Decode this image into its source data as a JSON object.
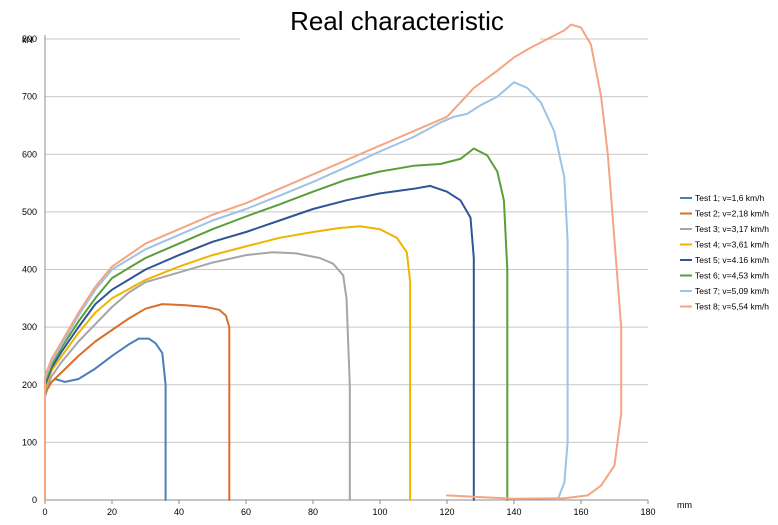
{
  "chart_data": {
    "type": "line",
    "title": "Real characteristic",
    "xunit": "mm",
    "yunit": "kN",
    "xlim": [
      0,
      180
    ],
    "ylim": [
      0,
      800
    ],
    "xticks": [
      0,
      20,
      40,
      60,
      80,
      100,
      120,
      140,
      160,
      180
    ],
    "yticks": [
      0,
      100,
      200,
      300,
      400,
      500,
      600,
      700,
      800
    ],
    "grid": true,
    "legend_position": "right",
    "series": [
      {
        "name": "Test 1; v=1,6 km/h",
        "color": "#4a7ebb",
        "points": [
          [
            0,
            0
          ],
          [
            0,
            180
          ],
          [
            1,
            200
          ],
          [
            3,
            210
          ],
          [
            6,
            205
          ],
          [
            10,
            210
          ],
          [
            15,
            228
          ],
          [
            20,
            250
          ],
          [
            25,
            270
          ],
          [
            28,
            280
          ],
          [
            31,
            280
          ],
          [
            33,
            272
          ],
          [
            35,
            255
          ],
          [
            36,
            200
          ],
          [
            36,
            100
          ],
          [
            36,
            0
          ]
        ]
      },
      {
        "name": "Test 2; v=2,18 km/h",
        "color": "#d96f2a",
        "points": [
          [
            0,
            0
          ],
          [
            0,
            185
          ],
          [
            2,
            205
          ],
          [
            5,
            222
          ],
          [
            10,
            250
          ],
          [
            15,
            275
          ],
          [
            20,
            295
          ],
          [
            25,
            315
          ],
          [
            30,
            332
          ],
          [
            35,
            340
          ],
          [
            42,
            338
          ],
          [
            48,
            335
          ],
          [
            52,
            330
          ],
          [
            54,
            320
          ],
          [
            55,
            300
          ],
          [
            55,
            200
          ],
          [
            55,
            100
          ],
          [
            55,
            0
          ]
        ]
      },
      {
        "name": "Test 3; v=3,17 km/h",
        "color": "#a5a5a5",
        "points": [
          [
            0,
            0
          ],
          [
            0,
            190
          ],
          [
            2,
            215
          ],
          [
            5,
            240
          ],
          [
            10,
            275
          ],
          [
            15,
            305
          ],
          [
            20,
            335
          ],
          [
            25,
            360
          ],
          [
            30,
            378
          ],
          [
            40,
            395
          ],
          [
            50,
            412
          ],
          [
            60,
            425
          ],
          [
            68,
            430
          ],
          [
            75,
            428
          ],
          [
            82,
            420
          ],
          [
            86,
            410
          ],
          [
            89,
            390
          ],
          [
            90,
            350
          ],
          [
            91,
            200
          ],
          [
            91,
            100
          ],
          [
            91,
            0
          ]
        ]
      },
      {
        "name": "Test 4; v=3,61 km/h",
        "color": "#f0b400",
        "points": [
          [
            0,
            0
          ],
          [
            0,
            195
          ],
          [
            2,
            225
          ],
          [
            5,
            250
          ],
          [
            10,
            290
          ],
          [
            15,
            325
          ],
          [
            20,
            350
          ],
          [
            30,
            382
          ],
          [
            40,
            405
          ],
          [
            50,
            425
          ],
          [
            60,
            440
          ],
          [
            70,
            455
          ],
          [
            80,
            465
          ],
          [
            88,
            472
          ],
          [
            94,
            475
          ],
          [
            100,
            470
          ],
          [
            105,
            455
          ],
          [
            108,
            430
          ],
          [
            109,
            380
          ],
          [
            109,
            200
          ],
          [
            109,
            100
          ],
          [
            109,
            0
          ]
        ]
      },
      {
        "name": "Test 5; v=4.16 km/h",
        "color": "#2f5597",
        "points": [
          [
            0,
            0
          ],
          [
            0,
            200
          ],
          [
            2,
            230
          ],
          [
            5,
            258
          ],
          [
            10,
            300
          ],
          [
            15,
            340
          ],
          [
            20,
            365
          ],
          [
            30,
            400
          ],
          [
            40,
            425
          ],
          [
            50,
            448
          ],
          [
            60,
            465
          ],
          [
            70,
            485
          ],
          [
            80,
            505
          ],
          [
            90,
            520
          ],
          [
            100,
            532
          ],
          [
            110,
            540
          ],
          [
            115,
            545
          ],
          [
            120,
            535
          ],
          [
            124,
            520
          ],
          [
            127,
            490
          ],
          [
            128,
            420
          ],
          [
            128,
            200
          ],
          [
            128,
            0
          ]
        ]
      },
      {
        "name": "Test 6; v=4,53 km/h",
        "color": "#5a9e3a",
        "points": [
          [
            0,
            0
          ],
          [
            0,
            205
          ],
          [
            2,
            235
          ],
          [
            5,
            265
          ],
          [
            10,
            310
          ],
          [
            15,
            350
          ],
          [
            20,
            385
          ],
          [
            30,
            420
          ],
          [
            40,
            445
          ],
          [
            50,
            470
          ],
          [
            60,
            492
          ],
          [
            70,
            513
          ],
          [
            80,
            535
          ],
          [
            90,
            556
          ],
          [
            100,
            570
          ],
          [
            110,
            580
          ],
          [
            118,
            583
          ],
          [
            124,
            592
          ],
          [
            128,
            610
          ],
          [
            132,
            598
          ],
          [
            135,
            570
          ],
          [
            137,
            520
          ],
          [
            138,
            400
          ],
          [
            138,
            200
          ],
          [
            138,
            0
          ]
        ]
      },
      {
        "name": "Test 7; v=5,09 km/h",
        "color": "#9dc3e6",
        "points": [
          [
            0,
            0
          ],
          [
            0,
            210
          ],
          [
            2,
            240
          ],
          [
            5,
            270
          ],
          [
            10,
            320
          ],
          [
            15,
            365
          ],
          [
            20,
            400
          ],
          [
            30,
            435
          ],
          [
            40,
            460
          ],
          [
            50,
            485
          ],
          [
            60,
            505
          ],
          [
            70,
            528
          ],
          [
            80,
            552
          ],
          [
            90,
            578
          ],
          [
            100,
            605
          ],
          [
            110,
            630
          ],
          [
            118,
            655
          ],
          [
            122,
            665
          ],
          [
            126,
            670
          ],
          [
            130,
            685
          ],
          [
            135,
            700
          ],
          [
            140,
            725
          ],
          [
            144,
            715
          ],
          [
            148,
            690
          ],
          [
            152,
            640
          ],
          [
            155,
            560
          ],
          [
            156,
            450
          ],
          [
            156,
            300
          ],
          [
            156,
            100
          ],
          [
            155,
            30
          ],
          [
            153,
            0
          ]
        ]
      },
      {
        "name": "Test 8; v=5,54 km/h",
        "color": "#f4a582",
        "points": [
          [
            0,
            0
          ],
          [
            0,
            215
          ],
          [
            2,
            245
          ],
          [
            5,
            275
          ],
          [
            10,
            325
          ],
          [
            15,
            370
          ],
          [
            20,
            405
          ],
          [
            30,
            445
          ],
          [
            40,
            470
          ],
          [
            50,
            495
          ],
          [
            60,
            515
          ],
          [
            70,
            540
          ],
          [
            80,
            565
          ],
          [
            90,
            590
          ],
          [
            100,
            615
          ],
          [
            110,
            640
          ],
          [
            120,
            665
          ],
          [
            124,
            690
          ],
          [
            128,
            715
          ],
          [
            135,
            745
          ],
          [
            140,
            768
          ],
          [
            145,
            785
          ],
          [
            150,
            800
          ],
          [
            155,
            815
          ],
          [
            157,
            825
          ],
          [
            160,
            820
          ],
          [
            163,
            790
          ],
          [
            166,
            700
          ],
          [
            168,
            600
          ],
          [
            170,
            450
          ],
          [
            172,
            300
          ],
          [
            172,
            150
          ],
          [
            170,
            60
          ],
          [
            166,
            25
          ],
          [
            162,
            8
          ],
          [
            155,
            3
          ],
          [
            140,
            2
          ],
          [
            130,
            5
          ],
          [
            120,
            8
          ]
        ]
      }
    ]
  }
}
